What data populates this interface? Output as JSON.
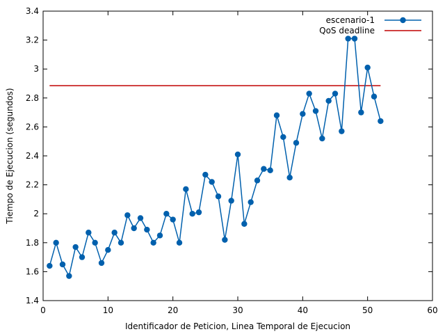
{
  "chart_data": {
    "type": "line",
    "title": "",
    "xlabel": "Identificador de Peticion, Linea Temporal de Ejecucion",
    "ylabel": "Tiempo de Ejecucion (segundos)",
    "xlim": [
      0,
      60
    ],
    "ylim": [
      1.4,
      3.4
    ],
    "xticks": [
      0,
      10,
      20,
      30,
      40,
      50,
      60
    ],
    "yticks": [
      1.4,
      1.6,
      1.8,
      2,
      2.2,
      2.4,
      2.6,
      2.8,
      3,
      3.2,
      3.4
    ],
    "ytick_labels": [
      "1.4",
      "1.6",
      "1.8",
      "2",
      "2.2",
      "2.4",
      "2.6",
      "2.8",
      "3",
      "3.2",
      "3.4"
    ],
    "grid": false,
    "legend_position": "top-right",
    "series": [
      {
        "name": "escenario-1",
        "color": "#0060ad",
        "marker": "circle",
        "x": [
          1,
          2,
          3,
          4,
          5,
          6,
          7,
          8,
          9,
          10,
          11,
          12,
          13,
          14,
          15,
          16,
          17,
          18,
          19,
          20,
          21,
          22,
          23,
          24,
          25,
          26,
          27,
          28,
          29,
          30,
          31,
          32,
          33,
          34,
          35,
          36,
          37,
          38,
          39,
          40,
          41,
          42,
          43,
          44,
          45,
          46,
          47,
          48,
          49,
          50,
          51,
          52
        ],
        "y": [
          1.64,
          1.8,
          1.65,
          1.57,
          1.77,
          1.7,
          1.87,
          1.8,
          1.66,
          1.75,
          1.87,
          1.8,
          1.99,
          1.9,
          1.97,
          1.89,
          1.8,
          1.85,
          2.0,
          1.96,
          1.8,
          2.17,
          2.0,
          2.01,
          2.27,
          2.22,
          2.12,
          1.82,
          2.09,
          2.41,
          1.93,
          2.08,
          2.23,
          2.31,
          2.3,
          2.68,
          2.53,
          2.25,
          2.49,
          2.69,
          2.83,
          2.71,
          2.52,
          2.78,
          2.83,
          2.57,
          3.21,
          3.21,
          2.7,
          3.01,
          2.81,
          2.64
        ]
      },
      {
        "name": "QoS deadline",
        "color": "#c00000",
        "x": [
          1,
          52
        ],
        "y": [
          2.885,
          2.885
        ]
      }
    ]
  }
}
